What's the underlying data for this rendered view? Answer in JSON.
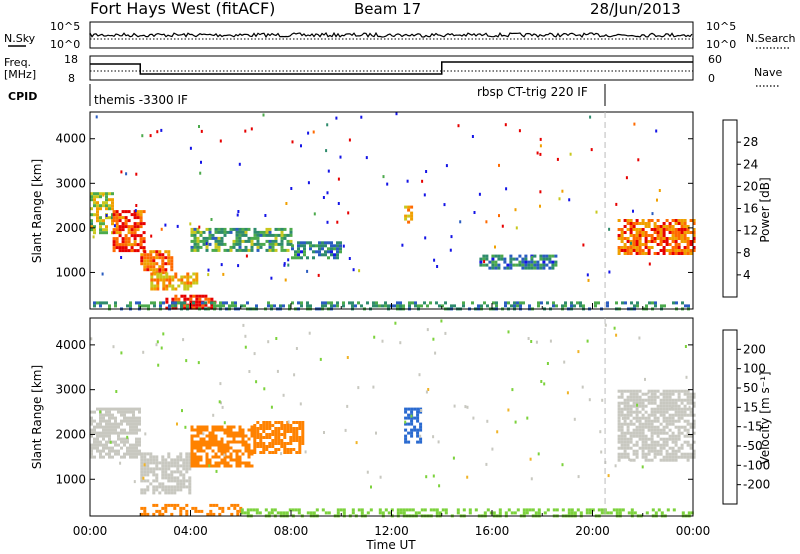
{
  "header": {
    "station": "Fort Hays West (fitACF)",
    "beam": "Beam 17",
    "date": "28/Jun/2013"
  },
  "left_labels": {
    "nsky": "N.Sky",
    "freq_line1": "Freq.",
    "freq_line2": "[MHz]",
    "cpid": "CPID"
  },
  "right_labels": {
    "nsearch": "N.Search",
    "nave": "Nave"
  },
  "noise_panel": {
    "left_ticks": [
      "10^5",
      "10^0"
    ],
    "right_ticks": [
      "10^5",
      "10^0"
    ]
  },
  "freq_panel": {
    "left_ticks": [
      "18",
      "8"
    ],
    "right_ticks": [
      "60",
      "0"
    ]
  },
  "cpid_panel": {
    "segments": [
      {
        "label": "themis -3300 IF",
        "start_hour": 0,
        "end_hour": 14
      },
      {
        "label": "rbsp CT-trig 220 IF",
        "start_hour": 14,
        "end_hour": 24
      }
    ]
  },
  "time_axis": {
    "label": "Time UT",
    "ticks": [
      "00:00",
      "04:00",
      "08:00",
      "12:00",
      "16:00",
      "20:00",
      "00:00"
    ]
  },
  "range_axis": {
    "label": "Slant Range [km]",
    "ticks": [
      "1000",
      "2000",
      "3000",
      "4000"
    ]
  },
  "colorbars": {
    "power": {
      "label": "Power [dB]",
      "ticks": [
        "4",
        "8",
        "12",
        "16",
        "20",
        "24",
        "28"
      ],
      "colors": [
        "#1414e6",
        "#2a5cc0",
        "#2e8b6c",
        "#4caa4c",
        "#c8c81e",
        "#f0a000",
        "#ff6a00",
        "#e60000"
      ]
    },
    "velocity": {
      "label": "Velocity [m s⁻¹]",
      "ticks": [
        "200",
        "100",
        "50",
        "15",
        "-15",
        "-50",
        "-100",
        "-200"
      ],
      "colors": [
        "#1e2ca0",
        "#2a6ad0",
        "#3c9a3c",
        "#7cd23c",
        "#c8c8c0",
        "#f0b428",
        "#ff8200",
        "#ff4600",
        "#e60000"
      ]
    }
  },
  "chart_data": [
    {
      "type": "heatmap",
      "title": "Power",
      "xlabel": "Time UT",
      "ylabel": "Slant Range [km]",
      "xlim": [
        0,
        24
      ],
      "ylim": [
        180,
        4600
      ],
      "colorbar": {
        "label": "Power [dB]",
        "range": [
          0,
          30
        ]
      },
      "regions": [
        {
          "t": [
            0.0,
            0.9
          ],
          "r": [
            1900,
            2800
          ],
          "value": 16
        },
        {
          "t": [
            0.9,
            2.2
          ],
          "r": [
            1500,
            2400
          ],
          "value": 26
        },
        {
          "t": [
            2.0,
            3.3
          ],
          "r": [
            1000,
            1500
          ],
          "value": 24
        },
        {
          "t": [
            2.4,
            4.2
          ],
          "r": [
            600,
            1000
          ],
          "value": 20
        },
        {
          "t": [
            3.0,
            5.0
          ],
          "r": [
            200,
            500
          ],
          "value": 28
        },
        {
          "t": [
            4.0,
            8.0
          ],
          "r": [
            1500,
            2000
          ],
          "value": 12
        },
        {
          "t": [
            8.0,
            10.0
          ],
          "r": [
            1300,
            1700
          ],
          "value": 8
        },
        {
          "t": [
            12.5,
            12.8
          ],
          "r": [
            2100,
            2500
          ],
          "value": 20
        },
        {
          "t": [
            15.5,
            18.5
          ],
          "r": [
            1100,
            1400
          ],
          "value": 8
        },
        {
          "t": [
            21.0,
            24.0
          ],
          "r": [
            1400,
            2200
          ],
          "value": 24
        },
        {
          "t": [
            0.0,
            24.0
          ],
          "r": [
            180,
            350
          ],
          "value": 10
        }
      ]
    },
    {
      "type": "heatmap",
      "title": "Velocity",
      "xlabel": "Time UT",
      "ylabel": "Slant Range [km]",
      "xlim": [
        0,
        24
      ],
      "ylim": [
        180,
        4600
      ],
      "colorbar": {
        "label": "Velocity [m s⁻¹]",
        "range": [
          -250,
          250
        ]
      },
      "regions": [
        {
          "t": [
            0.0,
            2.0
          ],
          "r": [
            1500,
            2600
          ],
          "value": 0
        },
        {
          "t": [
            2.0,
            4.0
          ],
          "r": [
            700,
            1600
          ],
          "value": 0
        },
        {
          "t": [
            4.0,
            6.5
          ],
          "r": [
            1300,
            2200
          ],
          "value": -60
        },
        {
          "t": [
            6.5,
            8.5
          ],
          "r": [
            1600,
            2300
          ],
          "value": -80
        },
        {
          "t": [
            2.0,
            6.0
          ],
          "r": [
            200,
            450
          ],
          "value": -70
        },
        {
          "t": [
            6.0,
            24.0
          ],
          "r": [
            180,
            350
          ],
          "value": 20
        },
        {
          "t": [
            12.5,
            13.2
          ],
          "r": [
            1800,
            2600
          ],
          "value": 120
        },
        {
          "t": [
            21.0,
            24.0
          ],
          "r": [
            1400,
            3000
          ],
          "value": 0
        }
      ]
    }
  ]
}
